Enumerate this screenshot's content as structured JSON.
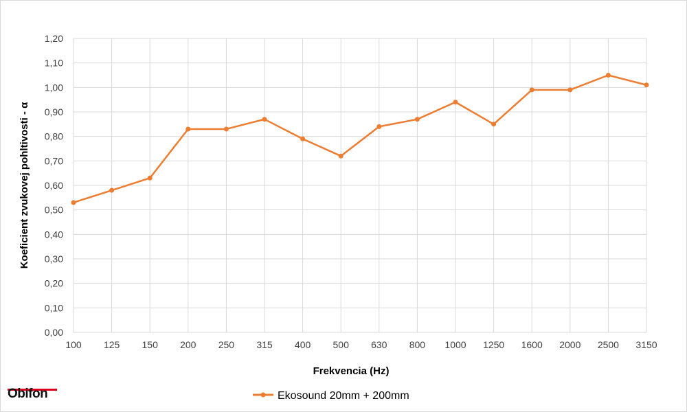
{
  "chart_data": {
    "type": "line",
    "categories": [
      "100",
      "125",
      "150",
      "200",
      "250",
      "315",
      "400",
      "500",
      "630",
      "800",
      "1000",
      "1250",
      "1600",
      "2000",
      "2500",
      "3150"
    ],
    "series": [
      {
        "name": "Ekosound 20mm + 200mm",
        "values": [
          0.53,
          0.58,
          0.63,
          0.83,
          0.83,
          0.87,
          0.79,
          0.72,
          0.84,
          0.87,
          0.94,
          0.85,
          0.99,
          0.99,
          1.05,
          1.01
        ]
      }
    ],
    "yticks": [
      "0,00",
      "0,10",
      "0,20",
      "0,30",
      "0,40",
      "0,50",
      "0,60",
      "0,70",
      "0,80",
      "0,90",
      "1,00",
      "1,10",
      "1,20"
    ],
    "ylim": [
      0,
      1.2
    ],
    "xlabel": "Frekvencia (Hz)",
    "ylabel": "Koeficient zvukovej pohltivosti - α",
    "grid": true,
    "legend_position": "bottom",
    "colors": {
      "series": "#ed7d31",
      "grid": "#d9d9d9"
    }
  },
  "logo": {
    "text": "Obifon",
    "accent": "#e3001b"
  }
}
